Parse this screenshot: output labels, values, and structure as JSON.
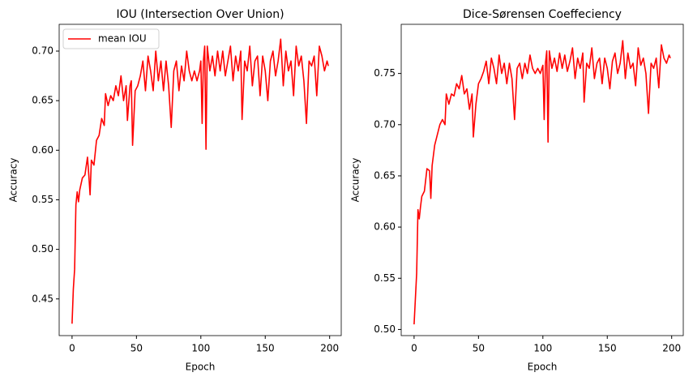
{
  "chart_data": [
    {
      "type": "line",
      "title": "IOU (Intersection Over Union)",
      "x_label": "Epoch",
      "y_label": "Accuracy",
      "x": [
        0,
        1,
        2,
        3,
        4,
        5,
        6,
        8,
        10,
        12,
        13,
        14,
        15,
        17,
        19,
        21,
        23,
        25,
        26,
        28,
        30,
        32,
        34,
        36,
        38,
        40,
        42,
        43,
        45,
        46,
        47,
        49,
        51,
        53,
        55,
        57,
        59,
        61,
        63,
        65,
        67,
        69,
        71,
        73,
        75,
        77,
        79,
        81,
        83,
        85,
        87,
        89,
        91,
        93,
        95,
        97,
        99,
        100,
        101,
        102,
        103,
        104,
        105,
        107,
        109,
        111,
        113,
        115,
        117,
        119,
        121,
        123,
        125,
        127,
        129,
        131,
        132,
        134,
        136,
        138,
        140,
        142,
        144,
        146,
        148,
        150,
        152,
        154,
        156,
        158,
        160,
        162,
        164,
        166,
        168,
        170,
        172,
        174,
        176,
        178,
        180,
        182,
        184,
        186,
        188,
        190,
        192,
        194,
        196,
        198,
        199
      ],
      "series": [
        {
          "name": "mean IOU",
          "color": "#ff0000",
          "values": [
            0.425,
            0.46,
            0.48,
            0.545,
            0.558,
            0.548,
            0.56,
            0.572,
            0.575,
            0.593,
            0.575,
            0.555,
            0.59,
            0.585,
            0.61,
            0.615,
            0.632,
            0.625,
            0.657,
            0.645,
            0.655,
            0.65,
            0.665,
            0.655,
            0.675,
            0.65,
            0.665,
            0.63,
            0.665,
            0.67,
            0.605,
            0.66,
            0.665,
            0.675,
            0.69,
            0.66,
            0.695,
            0.68,
            0.66,
            0.7,
            0.67,
            0.69,
            0.66,
            0.69,
            0.665,
            0.623,
            0.68,
            0.69,
            0.66,
            0.685,
            0.67,
            0.7,
            0.68,
            0.67,
            0.68,
            0.67,
            0.68,
            0.69,
            0.627,
            0.69,
            0.705,
            0.601,
            0.705,
            0.68,
            0.695,
            0.675,
            0.7,
            0.68,
            0.7,
            0.675,
            0.69,
            0.705,
            0.67,
            0.695,
            0.68,
            0.7,
            0.631,
            0.69,
            0.68,
            0.705,
            0.665,
            0.69,
            0.695,
            0.655,
            0.695,
            0.68,
            0.65,
            0.69,
            0.7,
            0.675,
            0.69,
            0.712,
            0.665,
            0.7,
            0.68,
            0.69,
            0.655,
            0.705,
            0.685,
            0.695,
            0.67,
            0.627,
            0.69,
            0.685,
            0.695,
            0.655,
            0.705,
            0.695,
            0.68,
            0.69,
            0.685
          ]
        }
      ],
      "xlim": [
        -10,
        209
      ],
      "xticks": [
        0,
        50,
        100,
        150,
        200
      ],
      "ylim": [
        0.413,
        0.727
      ],
      "yticks": [
        0.45,
        {
          "value": 0.5,
          "label": "0.50"
        },
        0.55,
        {
          "value": 0.6,
          "label": "0.60"
        },
        0.65,
        {
          "value": 0.7,
          "label": "0.70"
        }
      ],
      "legend": "upper left"
    },
    {
      "type": "line",
      "title": "Dice-Sørensen Coeffeciency",
      "x_label": "Epoch",
      "y_label": "Accuracy",
      "x": [
        0,
        1,
        2,
        3,
        4,
        5,
        6,
        8,
        10,
        12,
        13,
        14,
        16,
        18,
        20,
        22,
        24,
        25,
        27,
        29,
        31,
        33,
        35,
        37,
        39,
        41,
        43,
        45,
        46,
        48,
        50,
        52,
        54,
        56,
        58,
        60,
        62,
        64,
        66,
        68,
        70,
        72,
        74,
        76,
        78,
        80,
        82,
        84,
        86,
        88,
        90,
        92,
        94,
        96,
        98,
        100,
        101,
        102,
        103,
        104,
        105,
        107,
        109,
        111,
        113,
        115,
        117,
        119,
        121,
        123,
        125,
        127,
        129,
        131,
        132,
        134,
        136,
        138,
        140,
        142,
        144,
        146,
        148,
        150,
        152,
        154,
        156,
        158,
        160,
        162,
        164,
        166,
        168,
        170,
        172,
        174,
        176,
        178,
        180,
        182,
        184,
        186,
        188,
        190,
        192,
        194,
        196,
        198,
        199
      ],
      "series": [
        {
          "color": "#ff0000",
          "values": [
            0.505,
            0.53,
            0.555,
            0.617,
            0.608,
            0.62,
            0.63,
            0.635,
            0.657,
            0.655,
            0.628,
            0.66,
            0.68,
            0.69,
            0.7,
            0.705,
            0.7,
            0.73,
            0.72,
            0.73,
            0.728,
            0.74,
            0.735,
            0.748,
            0.73,
            0.735,
            0.715,
            0.73,
            0.688,
            0.72,
            0.74,
            0.745,
            0.752,
            0.762,
            0.74,
            0.765,
            0.755,
            0.74,
            0.768,
            0.75,
            0.76,
            0.74,
            0.76,
            0.745,
            0.705,
            0.755,
            0.76,
            0.745,
            0.76,
            0.75,
            0.768,
            0.755,
            0.75,
            0.755,
            0.75,
            0.758,
            0.705,
            0.76,
            0.772,
            0.683,
            0.772,
            0.755,
            0.765,
            0.752,
            0.77,
            0.755,
            0.768,
            0.752,
            0.762,
            0.775,
            0.745,
            0.765,
            0.755,
            0.77,
            0.722,
            0.76,
            0.755,
            0.775,
            0.745,
            0.76,
            0.765,
            0.74,
            0.765,
            0.755,
            0.735,
            0.762,
            0.77,
            0.75,
            0.76,
            0.782,
            0.745,
            0.77,
            0.755,
            0.76,
            0.738,
            0.775,
            0.758,
            0.765,
            0.75,
            0.711,
            0.76,
            0.755,
            0.765,
            0.736,
            0.778,
            0.765,
            0.76,
            0.768,
            0.765
          ]
        }
      ],
      "xlim": [
        -10,
        209
      ],
      "xticks": [
        0,
        50,
        100,
        150,
        200
      ],
      "ylim": [
        0.494,
        0.798
      ],
      "yticks": [
        {
          "value": 0.5,
          "label": "0.50"
        },
        0.55,
        {
          "value": 0.6,
          "label": "0.60"
        },
        0.65,
        {
          "value": 0.7,
          "label": "0.70"
        },
        0.75
      ]
    }
  ]
}
